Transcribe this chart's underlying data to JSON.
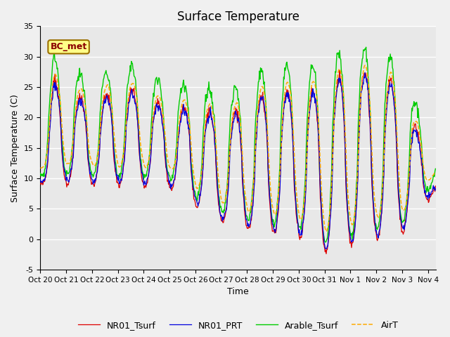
{
  "title": "Surface Temperature",
  "ylabel": "Surface Temperature (C)",
  "xlabel": "Time",
  "ylim": [
    -5,
    35
  ],
  "annotation": "BC_met",
  "plot_bg_color": "#e8e8e8",
  "fig_bg_color": "#f0f0f0",
  "line_colors": {
    "NR01_Tsurf": "#dd0000",
    "NR01_PRT": "#0000dd",
    "Arable_Tsurf": "#00cc00",
    "AirT": "#ffaa00"
  },
  "xtick_labels": [
    "Oct 20",
    "Oct 21",
    "Oct 22",
    "Oct 23",
    "Oct 24",
    "Oct 25",
    "Oct 26",
    "Oct 27",
    "Oct 28",
    "Oct 29",
    "Oct 30",
    "Oct 31",
    "Nov 1",
    "Nov 2",
    "Nov 3",
    "Nov 4"
  ],
  "ytick_vals": [
    -5,
    0,
    5,
    10,
    15,
    20,
    25,
    30,
    35
  ],
  "legend_entries": [
    "NR01_Tsurf",
    "NR01_PRT",
    "Arable_Tsurf",
    "AirT"
  ]
}
